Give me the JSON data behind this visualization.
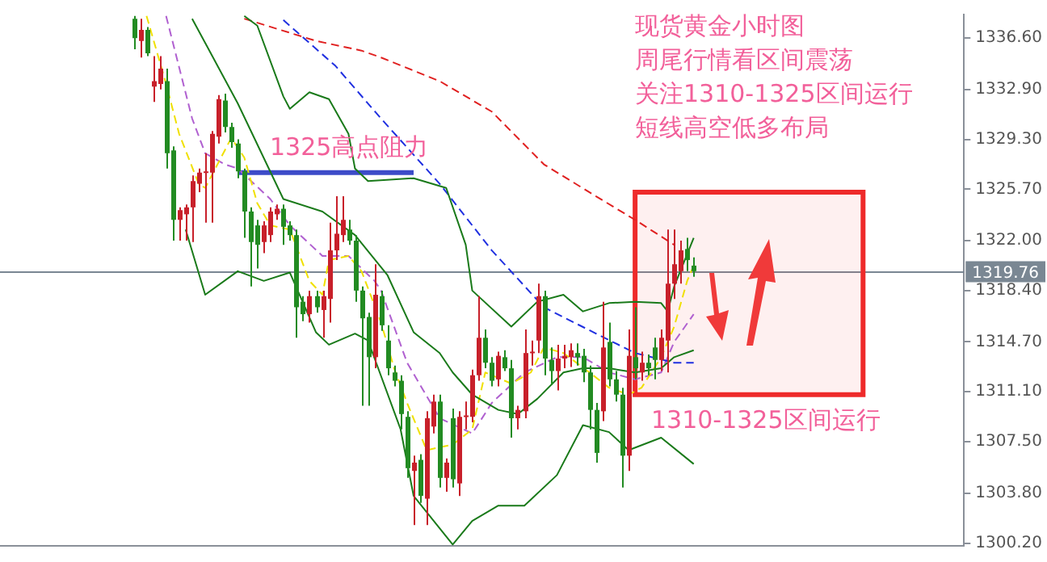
{
  "chart_data": {
    "type": "candlestick",
    "title": "现货黄金小时图",
    "annotations": [
      "周尾行情看区间震荡",
      "关注1310-1325区间运行",
      "短线高空低多布局",
      {
        "text": "1325高点阻力",
        "y": 1326.9
      }
    ],
    "categories": [
      null,
      null,
      null,
      null,
      null,
      null,
      null,
      null,
      null,
      null,
      null,
      null,
      null,
      null,
      null,
      null,
      null,
      null,
      null,
      null,
      null,
      null,
      null,
      null,
      null,
      null,
      null,
      null,
      null,
      null,
      null,
      null,
      null,
      null,
      null,
      null,
      null,
      null,
      null,
      null,
      null,
      null,
      null,
      null,
      null,
      null,
      null,
      null,
      null,
      null,
      null,
      null,
      null,
      null,
      null,
      null,
      null,
      null,
      null,
      null,
      null,
      null,
      null,
      null,
      null,
      null,
      null,
      null,
      null,
      null,
      null,
      null,
      null,
      null,
      null,
      null,
      null,
      null,
      null,
      null,
      null,
      null,
      null,
      null,
      null,
      null,
      null,
      null,
      null,
      null,
      null,
      null,
      null,
      null,
      null,
      null,
      null,
      null,
      null,
      null,
      null,
      null,
      null,
      null,
      null,
      null,
      null,
      null,
      null,
      null,
      null,
      null,
      null,
      null,
      null,
      null,
      null,
      null,
      null,
      null,
      null,
      null,
      null,
      null,
      null,
      null,
      null,
      null,
      null,
      null,
      null,
      null,
      null,
      null,
      null,
      null,
      null,
      null,
      null,
      null,
      null,
      null,
      null,
      null,
      null,
      null,
      null,
      null
    ],
    "ohlc": [
      null,
      null,
      null,
      null,
      null,
      null,
      null,
      null,
      null,
      null,
      null,
      null,
      null,
      null,
      null,
      null,
      null,
      null,
      null,
      null,
      [
        1338.0,
        1338.2,
        1335.8,
        1336.6
      ],
      [
        1336.4,
        1338.0,
        1335.2,
        1337.2
      ],
      [
        1337.2,
        1337.4,
        1335.3,
        1335.5
      ],
      [
        1333.1,
        1335.3,
        1332.0,
        1333.5
      ],
      [
        1333.3,
        1335.3,
        1332.9,
        1334.4
      ],
      [
        1333.5,
        1334.4,
        1327.2,
        1328.3
      ],
      [
        1328.5,
        1328.8,
        1322.0,
        1323.5
      ],
      [
        1323.5,
        1324.4,
        1322.0,
        1324.2
      ],
      [
        1323.9,
        1324.6,
        1322.0,
        1324.4
      ],
      [
        1324.4,
        1326.7,
        1321.9,
        1326.3
      ],
      [
        1326.1,
        1327.2,
        1325.5,
        1326.9
      ],
      [
        1326.9,
        1328.3,
        1323.3,
        1327.0
      ],
      [
        1326.9,
        1329.9,
        1323.3,
        1329.7
      ],
      [
        1329.5,
        1332.5,
        1329.0,
        1332.2
      ],
      [
        1332.1,
        1332.6,
        1329.8,
        1330.2
      ],
      [
        1330.2,
        1330.5,
        1328.7,
        1329.1
      ],
      [
        1329.0,
        1329.3,
        1326.5,
        1327.0
      ],
      [
        1327.0,
        1327.2,
        1322.2,
        1324.1
      ],
      [
        1324.1,
        1324.4,
        1318.7,
        1321.9
      ],
      [
        1323.1,
        1323.5,
        1320.0,
        1321.7
      ],
      [
        1321.9,
        1323.4,
        1321.1,
        1323.1
      ],
      [
        1322.4,
        1324.4,
        1321.9,
        1324.1
      ],
      [
        1323.9,
        1324.6,
        1323.5,
        1324.3
      ],
      [
        1324.3,
        1324.6,
        1321.7,
        1323.0
      ],
      [
        1323.1,
        1323.4,
        1322.0,
        1322.4
      ],
      [
        1322.4,
        1322.8,
        1315.0,
        1317.2
      ],
      [
        1317.6,
        1318.0,
        1316.2,
        1316.7
      ],
      [
        1316.7,
        1318.4,
        1316.1,
        1318.0
      ],
      [
        1318.0,
        1318.4,
        1316.8,
        1317.2
      ],
      [
        1317.0,
        1318.4,
        1315.0,
        1318.0
      ],
      [
        1317.8,
        1323.3,
        1316.1,
        1321.3
      ],
      [
        1321.3,
        1325.2,
        1320.6,
        1322.5
      ],
      [
        1322.4,
        1325.2,
        1321.9,
        1323.5
      ],
      [
        1322.8,
        1323.5,
        1321.7,
        1322.0
      ],
      [
        1322.0,
        1322.4,
        1317.6,
        1318.4
      ],
      [
        1318.4,
        1318.7,
        1310.1,
        1316.4
      ],
      [
        1316.5,
        1316.8,
        1310.1,
        1313.6
      ],
      [
        1313.6,
        1320.3,
        1312.8,
        1318.1
      ],
      [
        1318.0,
        1318.4,
        1315.5,
        1315.9
      ],
      [
        1314.8,
        1315.9,
        1312.3,
        1312.8
      ],
      [
        1312.5,
        1313.0,
        1311.5,
        1311.9
      ],
      [
        1311.9,
        1312.3,
        1308.4,
        1309.5
      ],
      [
        1309.3,
        1309.7,
        1304.9,
        1305.6
      ],
      [
        1305.4,
        1306.5,
        1301.5,
        1306.0
      ],
      [
        1306.2,
        1306.6,
        1303.1,
        1303.6
      ],
      [
        1303.4,
        1309.7,
        1301.5,
        1309.2
      ],
      [
        1308.6,
        1310.9,
        1308.1,
        1310.4
      ],
      [
        1310.4,
        1310.9,
        1304.2,
        1304.9
      ],
      [
        1304.9,
        1306.3,
        1303.9,
        1306.0
      ],
      [
        1309.2,
        1309.9,
        1304.2,
        1304.8
      ],
      [
        1304.5,
        1309.7,
        1303.6,
        1309.3
      ],
      [
        1309.3,
        1310.4,
        1308.4,
        1309.4
      ],
      [
        1309.3,
        1312.7,
        1308.9,
        1312.3
      ],
      [
        1312.3,
        1318.0,
        1311.9,
        1315.0
      ],
      [
        1315.0,
        1315.6,
        1312.8,
        1313.2
      ],
      [
        1313.2,
        1313.6,
        1311.5,
        1311.9
      ],
      [
        1312.0,
        1314.0,
        1311.5,
        1313.7
      ],
      [
        1313.6,
        1314.1,
        1312.6,
        1312.8
      ],
      [
        1312.8,
        1313.4,
        1307.8,
        1309.2
      ],
      [
        1309.2,
        1310.1,
        1308.4,
        1309.8
      ],
      [
        1309.7,
        1315.6,
        1309.2,
        1313.9
      ],
      [
        1313.9,
        1314.8,
        1313.0,
        1314.0
      ],
      [
        1314.8,
        1318.9,
        1313.9,
        1318.0
      ],
      [
        1318.0,
        1318.4,
        1312.3,
        1313.5
      ],
      [
        1313.4,
        1314.3,
        1311.6,
        1312.6
      ],
      [
        1312.6,
        1314.5,
        1311.2,
        1313.5
      ],
      [
        1313.5,
        1314.5,
        1312.8,
        1313.7
      ],
      [
        1313.6,
        1314.6,
        1312.9,
        1314.1
      ],
      [
        1313.9,
        1314.6,
        1313.0,
        1313.6
      ],
      [
        1313.7,
        1314.2,
        1311.8,
        1312.5
      ],
      [
        1312.5,
        1313.0,
        1308.4,
        1309.8
      ],
      [
        1309.8,
        1310.3,
        1306.0,
        1306.7
      ],
      [
        1309.7,
        1317.6,
        1309.0,
        1314.3
      ],
      [
        1314.7,
        1316.1,
        1311.5,
        1312.0
      ],
      [
        1312.0,
        1312.6,
        1310.4,
        1310.9
      ],
      [
        1310.9,
        1311.4,
        1304.2,
        1306.5
      ],
      [
        1306.5,
        1315.6,
        1305.4,
        1313.7
      ],
      [
        1313.6,
        1317.2,
        1312.0,
        1312.8
      ],
      [
        1312.5,
        1314.0,
        1311.9,
        1313.2
      ],
      [
        1313.2,
        1313.8,
        1312.3,
        1312.8
      ],
      [
        1314.3,
        1315.0,
        1312.0,
        1313.4
      ],
      [
        1313.4,
        1315.6,
        1312.6,
        1315.0
      ],
      [
        1314.8,
        1322.8,
        1312.5,
        1318.9
      ],
      [
        1318.9,
        1322.8,
        1317.8,
        1320.3
      ],
      [
        1319.8,
        1322.0,
        1318.9,
        1321.3
      ],
      [
        1321.4,
        1322.2,
        1319.8,
        1320.6
      ],
      [
        1320.2,
        1320.8,
        1319.4,
        1319.8
      ],
      null,
      null,
      null,
      null,
      null,
      null,
      null,
      null,
      null,
      null,
      null,
      null,
      null,
      null,
      null,
      null,
      null,
      null,
      null,
      null,
      null,
      null,
      null,
      null,
      null,
      null,
      null,
      null,
      null,
      null,
      null,
      null,
      null,
      null,
      null,
      null,
      null,
      null,
      null,
      null,
      null
    ],
    "colors": [
      null,
      null,
      null,
      null,
      null,
      null,
      null,
      null,
      null,
      null,
      null,
      null,
      null,
      null,
      null,
      null,
      null,
      null,
      null,
      null,
      "#228b22",
      "#c8202a",
      "#228b22",
      "#c8202a",
      "#c8202a",
      "#228b22",
      "#228b22",
      "#c8202a",
      "#c8202a",
      "#c8202a",
      "#c8202a",
      "#c8202a",
      "#c8202a",
      "#c8202a",
      "#228b22",
      "#228b22",
      "#228b22",
      "#228b22",
      "#228b22",
      "#228b22",
      "#c8202a",
      "#c8202a",
      "#c8202a",
      "#228b22",
      "#228b22",
      "#228b22",
      "#228b22",
      "#c8202a",
      "#228b22",
      "#c8202a",
      "#c8202a",
      "#c8202a",
      "#c8202a",
      "#228b22",
      "#228b22",
      "#228b22",
      "#228b22",
      "#c8202a",
      "#228b22",
      "#228b22",
      "#228b22",
      "#228b22",
      "#228b22",
      "#c8202a",
      "#228b22",
      "#c8202a",
      "#c8202a",
      "#228b22",
      "#c8202a",
      "#228b22",
      "#c8202a",
      "#c8202a",
      "#c8202a",
      "#c8202a",
      "#228b22",
      "#228b22",
      "#c8202a",
      "#228b22",
      "#228b22",
      "#c8202a",
      "#c8202a",
      "#c8202a",
      "#c8202a",
      "#228b22",
      "#228b22",
      "#c8202a",
      "#c8202a",
      "#c8202a",
      "#228b22",
      "#228b22",
      "#228b22",
      "#228b22",
      "#c8202a",
      "#228b22",
      "#228b22",
      "#228b22",
      "#c8202a",
      "#228b22",
      "#c8202a",
      "#228b22",
      "#228b22",
      "#c8202a",
      "#c8202a",
      "#c8202a",
      "#c8202a",
      "#228b22",
      "#228b22",
      null,
      null,
      null,
      null,
      null,
      null,
      null,
      null,
      null,
      null,
      null,
      null,
      null,
      null,
      null,
      null,
      null,
      null,
      null,
      null,
      null,
      null,
      null,
      null,
      null,
      null,
      null,
      null,
      null,
      null,
      null,
      null,
      null,
      null,
      null,
      null,
      null,
      null,
      null,
      null,
      null
    ],
    "series": [
      {
        "type": "line",
        "color": "#1a7a1a",
        "line_style": "solid",
        "values": [
          null,
          null,
          null,
          null,
          null,
          null,
          null,
          null,
          null,
          null,
          null,
          null,
          null,
          null,
          null,
          null,
          null,
          null,
          null,
          null,
          null,
          null,
          null,
          null,
          null,
          null,
          null,
          null,
          null,
          null,
          null,
          null,
          null,
          null,
          null,
          null,
          null,
          1338.2,
          null,
          1337.5,
          null,
          null,
          null,
          1332.4,
          1331.5,
          null,
          null,
          1332.7,
          null,
          null,
          1332.2,
          null,
          null,
          1329.7,
          1327.2,
          null,
          1326.3,
          null,
          null,
          null,
          null,
          null,
          null,
          1326.5,
          null,
          null,
          null,
          null,
          1325.8,
          null,
          null,
          1321.7,
          1318.4,
          null,
          null,
          null,
          null,
          null,
          1315.8,
          null,
          null,
          null,
          1317.6,
          null,
          null,
          null,
          1318.1,
          null,
          null,
          1316.9,
          null,
          null,
          null,
          1317.5,
          null,
          null,
          null,
          1317.6,
          null,
          null,
          null,
          1317.5,
          1316.9,
          1318.7,
          null,
          null,
          1322.2,
          null,
          null,
          null,
          null,
          null,
          null,
          null,
          null,
          null,
          null,
          null,
          null,
          null,
          null,
          null,
          null,
          null,
          null,
          null,
          null,
          null,
          null,
          null,
          null,
          null,
          null,
          null,
          null,
          null,
          null,
          null,
          null,
          null,
          null,
          null,
          null,
          null,
          null,
          null,
          null,
          null
        ]
      },
      {
        "type": "line",
        "color": "#1a7a1a",
        "line_style": "solid",
        "values": [
          null,
          null,
          null,
          null,
          null,
          null,
          null,
          null,
          null,
          null,
          null,
          null,
          null,
          null,
          null,
          null,
          null,
          null,
          null,
          null,
          null,
          null,
          null,
          null,
          null,
          null,
          null,
          null,
          null,
          1338.0,
          null,
          null,
          null,
          null,
          null,
          null,
          1331.9,
          null,
          null,
          null,
          null,
          null,
          null,
          1325.0,
          null,
          null,
          null,
          null,
          null,
          1324.1,
          null,
          null,
          null,
          null,
          1322.4,
          null,
          null,
          null,
          null,
          1319.5,
          null,
          null,
          null,
          1315.4,
          null,
          null,
          null,
          1313.9,
          null,
          1312.5,
          null,
          null,
          1310.9,
          null,
          null,
          null,
          1309.8,
          null,
          null,
          1309.5,
          null,
          null,
          1310.6,
          null,
          null,
          null,
          1312.5,
          null,
          null,
          1312.8,
          null,
          null,
          null,
          1312.8,
          null,
          null,
          null,
          1312.5,
          null,
          null,
          null,
          1312.8,
          null,
          1313.6,
          null,
          null,
          1314.1,
          null,
          null,
          null,
          null,
          null,
          null,
          null,
          null,
          null,
          null,
          null,
          null,
          null,
          null,
          null,
          null,
          null,
          null,
          null,
          null,
          null,
          null,
          null,
          null,
          null,
          null,
          null,
          null,
          null,
          null,
          null,
          null,
          null,
          null,
          null,
          null,
          null,
          null,
          null,
          null,
          null
        ]
      },
      {
        "type": "line",
        "color": "#1a7a1a",
        "line_style": "solid",
        "values": [
          null,
          null,
          null,
          null,
          null,
          null,
          null,
          null,
          null,
          null,
          null,
          null,
          null,
          null,
          null,
          null,
          null,
          null,
          null,
          null,
          null,
          null,
          null,
          null,
          null,
          null,
          null,
          null,
          1322.8,
          null,
          null,
          1318.1,
          null,
          null,
          null,
          null,
          1319.8,
          null,
          null,
          null,
          1319.1,
          null,
          null,
          null,
          1319.7,
          null,
          null,
          null,
          1315.4,
          null,
          1314.5,
          null,
          null,
          null,
          1315.3,
          null,
          1314.8,
          null,
          null,
          null,
          null,
          1308.4,
          null,
          1303.6,
          null,
          null,
          null,
          null,
          null,
          1300.1,
          null,
          null,
          1301.8,
          null,
          null,
          null,
          1302.9,
          null,
          null,
          null,
          1302.9,
          null,
          null,
          null,
          null,
          1305.1,
          null,
          null,
          null,
          1308.7,
          null,
          null,
          null,
          1308.2,
          null,
          null,
          1306.9,
          null,
          null,
          null,
          null,
          1307.8,
          null,
          null,
          null,
          null,
          1305.9,
          null,
          null,
          null,
          null,
          null,
          null,
          null,
          null,
          null,
          null,
          null,
          null,
          null,
          null,
          null,
          null,
          null,
          null,
          null,
          null,
          null,
          null,
          null,
          null,
          null,
          null,
          null,
          null,
          null,
          null,
          null,
          null,
          null,
          null,
          null,
          null,
          null,
          null,
          null,
          null,
          null
        ]
      },
      {
        "type": "line",
        "color": "#e02020",
        "line_style": "dashed",
        "values": [
          null,
          null,
          null,
          null,
          null,
          null,
          null,
          null,
          null,
          null,
          null,
          null,
          null,
          null,
          null,
          null,
          null,
          null,
          null,
          null,
          null,
          null,
          null,
          null,
          null,
          null,
          null,
          null,
          null,
          null,
          null,
          null,
          null,
          null,
          null,
          null,
          null,
          1338.0,
          null,
          null,
          null,
          null,
          null,
          null,
          null,
          null,
          null,
          null,
          1336.4,
          null,
          null,
          null,
          null,
          null,
          null,
          1335.7,
          null,
          null,
          1335.2,
          null,
          null,
          null,
          null,
          null,
          null,
          null,
          null,
          1333.5,
          null,
          null,
          null,
          null,
          null,
          null,
          null,
          1331.3,
          null,
          null,
          null,
          null,
          null,
          null,
          null,
          1327.5,
          null,
          null,
          null,
          null,
          null,
          null,
          null,
          1325.2,
          null,
          null,
          null,
          null,
          null,
          1323.5,
          null,
          null,
          null,
          null,
          null,
          1321.7,
          null,
          null,
          null,
          null,
          null,
          null,
          null,
          null,
          null,
          null,
          null,
          null,
          null,
          null,
          null,
          null,
          null,
          null,
          null,
          null,
          null,
          null,
          null,
          null,
          null,
          null,
          null,
          null,
          null,
          null,
          null,
          null,
          null,
          null,
          null,
          null,
          null,
          null,
          null,
          null,
          null,
          null,
          null,
          null
        ]
      },
      {
        "type": "line",
        "color": "#2030e0",
        "line_style": "dashed",
        "values": [
          null,
          null,
          null,
          null,
          null,
          null,
          null,
          null,
          null,
          null,
          null,
          null,
          null,
          null,
          null,
          null,
          null,
          null,
          null,
          null,
          null,
          null,
          null,
          null,
          null,
          null,
          null,
          null,
          null,
          null,
          null,
          null,
          null,
          null,
          null,
          null,
          null,
          null,
          null,
          null,
          null,
          null,
          null,
          1337.9,
          null,
          null,
          null,
          null,
          null,
          null,
          null,
          1334.6,
          null,
          null,
          null,
          null,
          null,
          null,
          1330.8,
          null,
          null,
          null,
          null,
          null,
          null,
          null,
          null,
          1326.1,
          null,
          null,
          null,
          null,
          null,
          null,
          null,
          1321.3,
          null,
          null,
          null,
          null,
          null,
          null,
          null,
          1317.2,
          null,
          null,
          null,
          null,
          null,
          null,
          null,
          1315.3,
          null,
          null,
          null,
          null,
          null,
          1313.9,
          null,
          null,
          null,
          null,
          null,
          1313.2,
          null,
          null,
          1313.2,
          null,
          null,
          null,
          null,
          null,
          null,
          null,
          null,
          null,
          null,
          null,
          null,
          null,
          null,
          null,
          null,
          null,
          null,
          null,
          null,
          null,
          null,
          null,
          null,
          null,
          null,
          null,
          null,
          null,
          null,
          null,
          null,
          null,
          null,
          null,
          null,
          null,
          null,
          null,
          null,
          null
        ]
      },
      {
        "type": "line",
        "color": "#f0e000",
        "line_style": "dashed",
        "values": [
          null,
          null,
          null,
          null,
          null,
          null,
          null,
          null,
          null,
          null,
          null,
          null,
          null,
          null,
          null,
          null,
          null,
          null,
          null,
          null,
          null,
          null,
          1338.2,
          null,
          null,
          1333.3,
          null,
          1329.7,
          null,
          null,
          1326.1,
          1325.8,
          null,
          null,
          null,
          1329.4,
          null,
          1328.0,
          null,
          1324.7,
          null,
          1323.1,
          null,
          null,
          1322.8,
          null,
          null,
          1319.1,
          null,
          1318.1,
          1320.6,
          null,
          null,
          1320.9,
          null,
          1319.8,
          null,
          null,
          1316.1,
          null,
          1312.8,
          null,
          1310.3,
          null,
          null,
          1306.9,
          null,
          null,
          null,
          1307.3,
          null,
          null,
          1308.4,
          null,
          1312.5,
          null,
          null,
          null,
          1311.7,
          null,
          null,
          1312.5,
          null,
          1314.3,
          null,
          null,
          1313.9,
          null,
          null,
          null,
          1312.5,
          null,
          null,
          1311.4,
          null,
          null,
          1310.9,
          null,
          1311.4,
          null,
          null,
          1313.6,
          null,
          1315.8,
          null,
          1319.1,
          1320.2,
          null,
          null,
          null,
          null,
          null,
          null,
          null,
          null,
          null,
          null,
          null,
          null,
          null,
          null,
          null,
          null,
          null,
          null,
          null,
          null,
          null,
          null,
          null,
          null,
          null,
          null,
          null,
          null,
          null,
          null,
          null,
          null,
          null,
          null,
          null,
          null,
          null,
          null,
          null,
          null,
          null
        ]
      },
      {
        "type": "line",
        "color": "#b060d0",
        "line_style": "dashed",
        "values": [
          null,
          null,
          null,
          null,
          null,
          null,
          null,
          null,
          null,
          null,
          null,
          null,
          null,
          null,
          null,
          null,
          null,
          null,
          null,
          null,
          null,
          null,
          null,
          null,
          null,
          1338.2,
          null,
          null,
          null,
          1330.8,
          null,
          1328.3,
          null,
          null,
          1327.5,
          null,
          1327.2,
          null,
          null,
          null,
          null,
          1325.0,
          null,
          null,
          1323.1,
          null,
          null,
          null,
          null,
          1320.9,
          null,
          null,
          null,
          1320.9,
          null,
          null,
          null,
          1319.1,
          1318.4,
          null,
          null,
          null,
          1313.2,
          null,
          null,
          null,
          null,
          1309.2,
          null,
          null,
          null,
          null,
          1308.1,
          null,
          null,
          1310.3,
          null,
          null,
          null,
          null,
          1312.5,
          null,
          null,
          null,
          null,
          1313.6,
          null,
          null,
          null,
          1313.6,
          null,
          null,
          null,
          1312.5,
          null,
          null,
          null,
          1312.0,
          null,
          null,
          null,
          1312.5,
          null,
          1314.7,
          null,
          null,
          1316.7,
          null,
          null,
          null,
          null,
          null,
          null,
          null,
          null,
          null,
          null,
          null,
          null,
          null,
          null,
          null,
          null,
          null,
          null,
          null,
          null,
          null,
          null,
          null,
          null,
          null,
          null,
          null,
          null,
          null,
          null,
          null,
          null,
          null,
          null,
          null,
          null,
          null,
          null,
          null,
          null,
          null
        ]
      },
      {
        "type": "line",
        "color": "#3c4bc8",
        "line_style": "solid",
        "values": [
          null,
          null,
          null,
          null,
          null,
          null,
          null,
          null,
          null,
          null,
          null,
          null,
          null,
          null,
          null,
          null,
          null,
          null,
          null,
          null,
          null,
          null,
          null,
          null,
          null,
          null,
          null,
          null,
          null,
          null,
          null,
          null,
          null,
          null,
          null,
          null,
          1326.9,
          null,
          null,
          null,
          null,
          null,
          null,
          null,
          null,
          null,
          null,
          null,
          null,
          null,
          null,
          null,
          null,
          null,
          null,
          null,
          null,
          null,
          null,
          null,
          null,
          null,
          null,
          1326.9,
          null,
          null,
          null,
          null,
          null,
          null,
          null,
          null,
          null,
          null,
          null,
          null,
          null,
          null,
          null,
          null,
          null,
          null,
          null,
          null,
          null,
          null,
          null,
          null,
          null,
          null,
          null,
          null,
          null,
          null,
          null,
          null,
          null,
          null,
          null,
          null,
          null,
          null,
          null,
          null,
          null,
          null,
          null,
          null,
          null,
          null,
          null,
          null,
          null,
          null,
          null,
          null,
          null,
          null,
          null,
          null,
          null,
          null,
          null,
          null,
          null,
          null,
          null,
          null,
          null,
          null,
          null,
          null,
          null,
          null,
          null,
          null,
          null,
          null,
          null,
          null,
          null,
          null,
          null,
          null,
          null,
          null,
          null,
          null
        ]
      }
    ],
    "ylim": [
      1300.0,
      1338.3
    ],
    "yticks": [
      {
        "value": 1336.6,
        "label": "1336.60"
      },
      {
        "value": 1332.9,
        "label": "1332.90"
      },
      {
        "value": 1329.3,
        "label": "1329.30"
      },
      {
        "value": 1325.7,
        "label": "1325.70"
      },
      {
        "value": 1322.0,
        "label": "1322.00"
      },
      {
        "value": 1318.4,
        "label": "1318.40"
      },
      {
        "value": 1314.7,
        "label": "1314.70"
      },
      {
        "value": 1311.1,
        "label": "1311.10"
      },
      {
        "value": 1307.5,
        "label": "1307.50"
      },
      {
        "value": 1303.8,
        "label": "1303.80"
      },
      {
        "value": 1300.2,
        "label": "1300.20"
      }
    ],
    "ref_lines": [
      {
        "axis": "y",
        "value": 1319.76,
        "label": "1319.76",
        "color": "#7a8793"
      }
    ],
    "bands": [
      {
        "axis": "y",
        "from": 1310.9,
        "to": 1325.5,
        "label": "1310-1325区间运行",
        "color": "#ee2a2a"
      }
    ],
    "tick_labels": "y"
  }
}
